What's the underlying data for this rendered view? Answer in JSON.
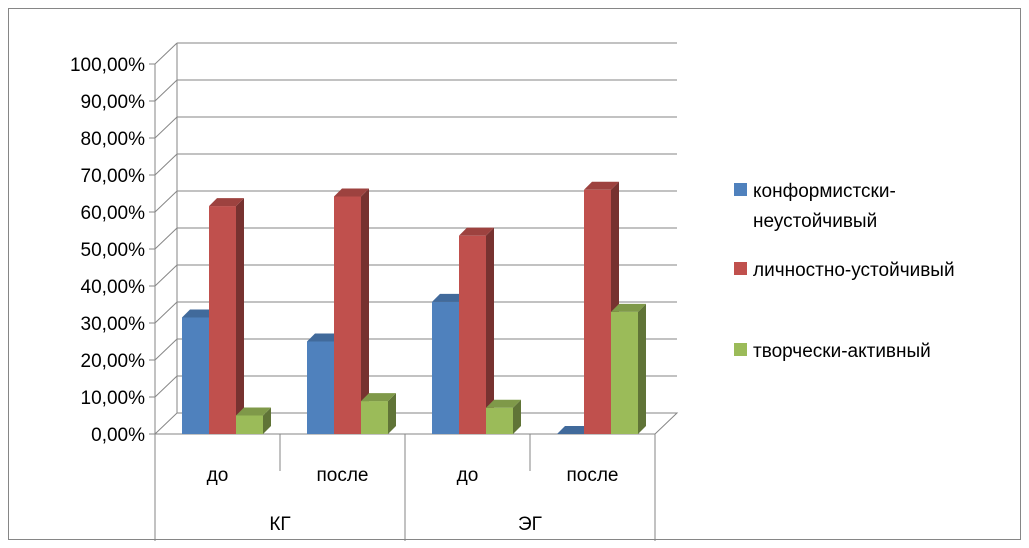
{
  "chart_data": {
    "type": "bar",
    "variant": "3d-clustered-column",
    "y_ticks": [
      "0,00%",
      "10,00%",
      "20,00%",
      "30,00%",
      "40,00%",
      "50,00%",
      "60,00%",
      "70,00%",
      "80,00%",
      "90,00%",
      "100,00%"
    ],
    "ylim": [
      0,
      100
    ],
    "grid": true,
    "legend_position": "right",
    "categories": [
      "до",
      "после",
      "до",
      "после"
    ],
    "groups": [
      {
        "label": "КГ",
        "categories": [
          "до",
          "после"
        ]
      },
      {
        "label": "ЭГ",
        "categories": [
          "до",
          "после"
        ]
      }
    ],
    "series": [
      {
        "name": "конформистски-неустойчивый",
        "legend_lines": [
          "конформистски-",
          "неустойчивый"
        ],
        "color": "#4F81BD",
        "values": [
          31.5,
          25,
          35.7,
          0
        ]
      },
      {
        "name": "личностно-устойчивый",
        "legend_lines": [
          "личностно-устойчивый"
        ],
        "color": "#C0504D",
        "values": [
          61.6,
          64.2,
          53.6,
          66
        ]
      },
      {
        "name": "творчески-активный",
        "legend_lines": [
          "творчески-активный"
        ],
        "color": "#9BBB59",
        "values": [
          5,
          8.9,
          7.1,
          33
        ]
      }
    ]
  }
}
